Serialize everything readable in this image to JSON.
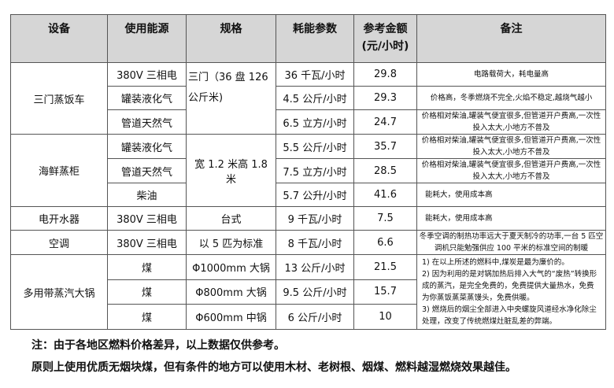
{
  "headers": [
    "设备",
    "使用能源",
    "规格",
    "耗能参数",
    "参考金额",
    "(元/小时)",
    "备注"
  ],
  "rows": {
    "r0": {
      "device": "三门蒸饭车",
      "energy": "380V 三相电",
      "spec": "三门（36 盘 126 公斤米)",
      "param": "36 千瓦/小时",
      "price": "29.8",
      "note": "电路载荷大，耗电量高"
    },
    "r1": {
      "energy": "罐装液化气",
      "param": "4.5 公斤/小时",
      "price": "29.3",
      "note": "价格高，冬季燃烧不完全,火焰不稳定,越烧气越小"
    },
    "r2": {
      "energy": "管道天然气",
      "param": "6.5 立方/小时",
      "price": "24.7",
      "note": "价格相对柴油,罐装气便宜很多,但管道开户费高,一次性投入太大,小地方不普及"
    },
    "r3": {
      "device": "海鲜蒸柜",
      "energy": "罐装液化气",
      "spec": "宽 1.2 米高 1.8 米",
      "param": "5.5 公斤/小时",
      "price": "35.7",
      "note": "价格相对柴油,罐装气便宜很多,但管道开户费高,一次性投入太大,小地方不普及"
    },
    "r4": {
      "energy": "管道天然气",
      "param": "7.5 立方/小时",
      "price": "28.5",
      "note": "价格相对柴油,罐装气便宜很多,但管道开户费高,一次性投入太大,小地方不普及"
    },
    "r5": {
      "energy": "柴油",
      "param": "5.7 公升/小时",
      "price": "41.6",
      "note": "能耗大，使用成本高"
    },
    "r6": {
      "device": "电开水器",
      "energy": "380V 三相电",
      "spec": "台式",
      "param": "9 千瓦/小时",
      "price": "7.5",
      "note": "能耗大，使用成本高"
    },
    "r7": {
      "device": "空调",
      "energy": "380V 三相电",
      "spec": "以 5 匹为标准",
      "param": "8 千瓦/小时",
      "price": "6.6",
      "note": "冬季空调的制热功率远大于夏天制冷的功率,一台 5 匹空调机只能勉强供应 100 平米的标准空间的制暖"
    },
    "r8": {
      "device": "多用带蒸汽大锅",
      "energy": "煤",
      "spec": "Φ1000mm 大锅",
      "param": "13 公斤/小时",
      "price": "21.5"
    },
    "r9": {
      "energy": "煤",
      "spec": "Φ800mm 大锅",
      "param": "9.5 公斤/小时",
      "price": "15.7"
    },
    "r10": {
      "energy": "煤",
      "spec": "Φ600mm 中锅",
      "param": "6 公斤/小时",
      "price": "10"
    }
  },
  "coal_notes": [
    "1)  在以上所述的燃料中,煤炭是最为廉价的。",
    "2)  因为利用的是对锅加热后排入大气的“废热”转换形成的蒸汽，是完全免费的，免费提供大量热水，免费为你蒸饭蒸菜蒸馒头，免费供暖。",
    "3)  燃烧后的烟尘全部进入中央螺旋风道经水净化除尘处理，改变了传统燃煤灶脏乱差的弊端。"
  ],
  "footnotes": [
    "注：由于各地区燃料价格差异，以上数据仅供参考。",
    "原则上使用优质无烟块煤，但有条件的地方可以使用木材、老树根、烟煤、燃料越湿燃烧效果越佳。"
  ],
  "colors": {
    "header_bg": "#d6d6d6",
    "border": "#555555"
  }
}
